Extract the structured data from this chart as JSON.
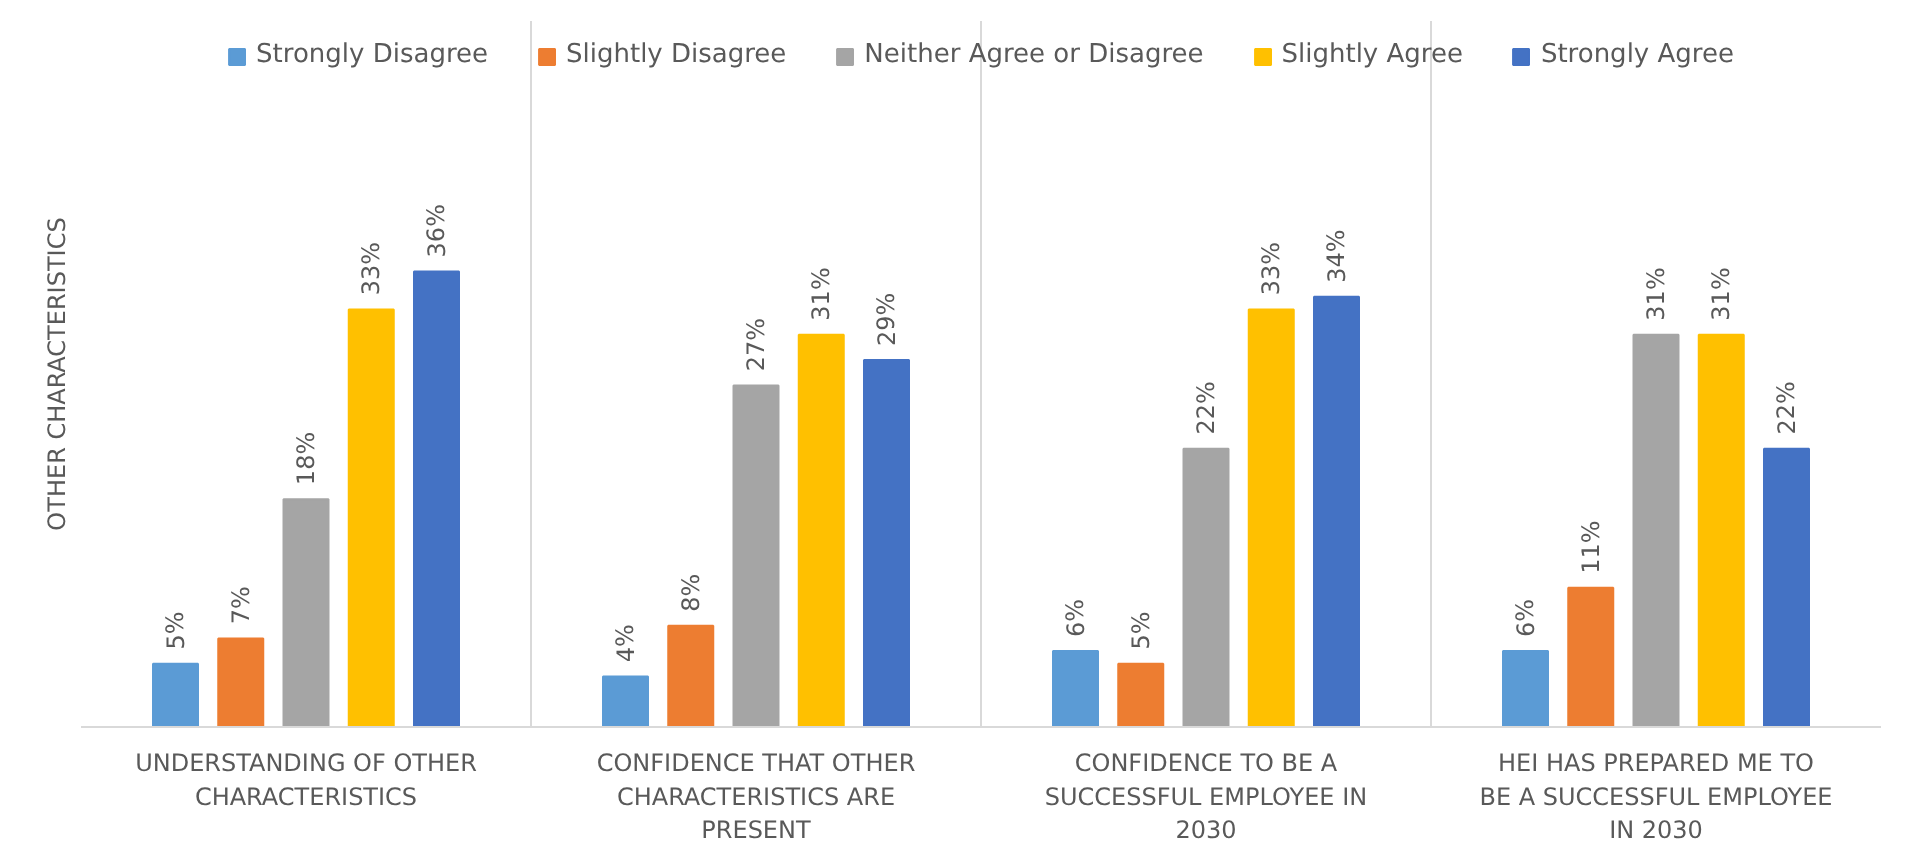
{
  "chart_data": {
    "type": "bar",
    "ylabel": "OTHER CHARACTERISTICS",
    "legend": "top",
    "categories": [
      "UNDERSTANDING OF OTHER CHARACTERISTICS",
      "CONFIDENCE THAT OTHER CHARACTERISTICS ARE PRESENT",
      "CONFIDENCE TO BE A SUCCESSFUL EMPLOYEE IN 2030",
      "HEI HAS PREPARED ME TO BE A SUCCESSFUL EMPLOYEE IN 2030"
    ],
    "series": [
      {
        "name": "Strongly Disagree",
        "color": "#5b9bd5",
        "values": [
          5,
          4,
          6,
          6
        ],
        "value_labels": [
          "5%",
          "4%",
          "6%",
          "6%"
        ]
      },
      {
        "name": "Slightly Disagree",
        "color": "#ed7d31",
        "values": [
          7,
          8,
          5,
          11
        ],
        "value_labels": [
          "7%",
          "8%",
          "5%",
          "11%"
        ]
      },
      {
        "name": "Neither Agree or Disagree",
        "color": "#a5a5a5",
        "values": [
          18,
          27,
          22,
          31
        ],
        "value_labels": [
          "18%",
          "27%",
          "22%",
          "31%"
        ]
      },
      {
        "name": "Slightly Agree",
        "color": "#ffc000",
        "values": [
          33,
          31,
          33,
          31
        ],
        "value_labels": [
          "33%",
          "31%",
          "33%",
          "31%"
        ]
      },
      {
        "name": "Strongly Agree",
        "color": "#4472c4",
        "values": [
          36,
          29,
          34,
          22
        ],
        "value_labels": [
          "36%",
          "29%",
          "34%",
          "22%"
        ]
      }
    ]
  }
}
